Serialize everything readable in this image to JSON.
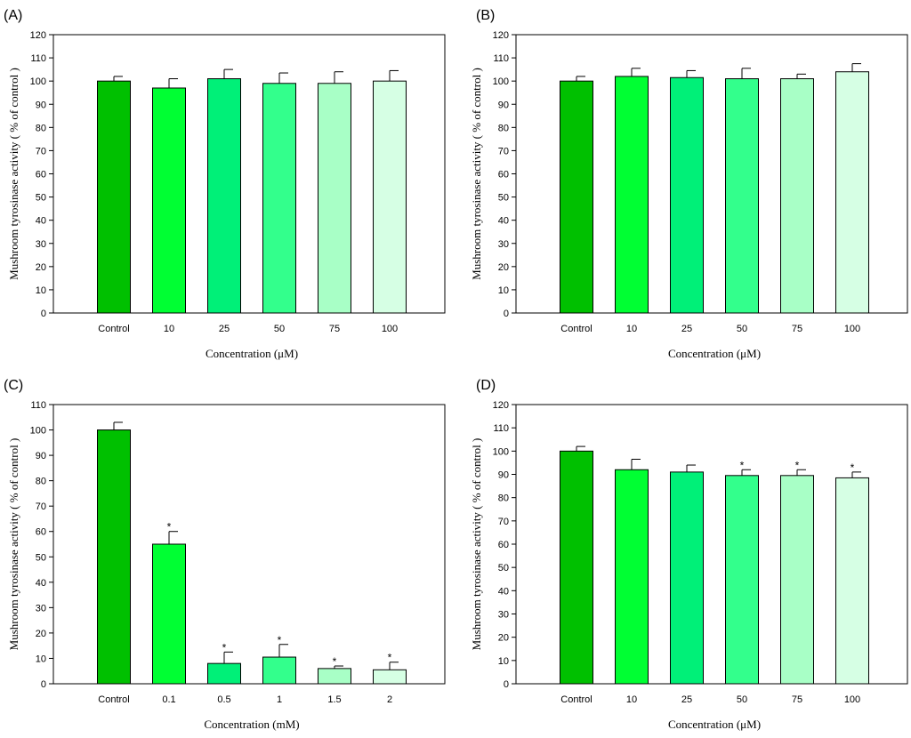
{
  "chart_data": [
    {
      "panel": "(A)",
      "type": "bar",
      "categories": [
        "Control",
        "10",
        "25",
        "50",
        "75",
        "100"
      ],
      "values": [
        100,
        97,
        101,
        99,
        99,
        100
      ],
      "errors": [
        2,
        4,
        4,
        4.5,
        5,
        4.5
      ],
      "significant": [
        false,
        false,
        false,
        false,
        false,
        false
      ],
      "colors": [
        "#00c000",
        "#00ff33",
        "#00f078",
        "#33ff8c",
        "#a8ffc6",
        "#d6ffe4"
      ],
      "xlabel": "Concentration (μM)",
      "ylabel": "Mushroom tyrosinase activity ( % of control )",
      "ylim": [
        0,
        120
      ],
      "yticks": [
        0,
        10,
        20,
        30,
        40,
        50,
        60,
        70,
        80,
        90,
        100,
        110,
        120
      ]
    },
    {
      "panel": "(B)",
      "type": "bar",
      "categories": [
        "Control",
        "10",
        "25",
        "50",
        "75",
        "100"
      ],
      "values": [
        100,
        102,
        101.5,
        101,
        101,
        104
      ],
      "errors": [
        2,
        3.5,
        3,
        4.5,
        2,
        3.5
      ],
      "significant": [
        false,
        false,
        false,
        false,
        false,
        false
      ],
      "colors": [
        "#00c000",
        "#00ff33",
        "#00f078",
        "#33ff8c",
        "#a8ffc6",
        "#d6ffe4"
      ],
      "xlabel": "Concentration (μM)",
      "ylabel": "Mushroom tyrosinase activity ( % of control )",
      "ylim": [
        0,
        120
      ],
      "yticks": [
        0,
        10,
        20,
        30,
        40,
        50,
        60,
        70,
        80,
        90,
        100,
        110,
        120
      ]
    },
    {
      "panel": "(C)",
      "type": "bar",
      "categories": [
        "Control",
        "0.1",
        "0.5",
        "1",
        "1.5",
        "2"
      ],
      "values": [
        100,
        55,
        8,
        10.5,
        6,
        5.5
      ],
      "errors": [
        3,
        5,
        4.5,
        5,
        1,
        3
      ],
      "significant": [
        false,
        true,
        true,
        true,
        true,
        true
      ],
      "colors": [
        "#00c000",
        "#00ff33",
        "#00f078",
        "#33ff8c",
        "#a8ffc6",
        "#d6ffe4"
      ],
      "xlabel": "Concentration (mM)",
      "ylabel": "Mushroom tyrosinase activity ( % of control )",
      "ylim": [
        0,
        110
      ],
      "yticks": [
        0,
        10,
        20,
        30,
        40,
        50,
        60,
        70,
        80,
        90,
        100,
        110
      ]
    },
    {
      "panel": "(D)",
      "type": "bar",
      "categories": [
        "Control",
        "10",
        "25",
        "50",
        "75",
        "100"
      ],
      "values": [
        100,
        92,
        91,
        89.5,
        89.5,
        88.5
      ],
      "errors": [
        2,
        4.5,
        3,
        2.5,
        2.5,
        2.5
      ],
      "significant": [
        false,
        false,
        false,
        true,
        true,
        true
      ],
      "colors": [
        "#00c000",
        "#00ff33",
        "#00f078",
        "#33ff8c",
        "#a8ffc6",
        "#d6ffe4"
      ],
      "xlabel": "Concentration (μM)",
      "ylabel": "Mushroom tyrosinase activity ( % of control )",
      "ylim": [
        0,
        120
      ],
      "yticks": [
        0,
        10,
        20,
        30,
        40,
        50,
        60,
        70,
        80,
        90,
        100,
        110,
        120
      ]
    }
  ],
  "significance_mark": "*"
}
